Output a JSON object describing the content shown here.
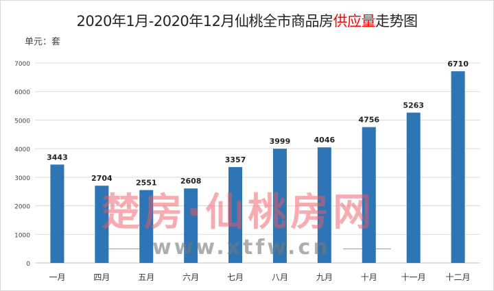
{
  "chart_data": {
    "type": "bar",
    "title_parts": [
      "2020年1月-2020年12月仙桃全市商品房",
      "供应量",
      "走势图"
    ],
    "unit_label": "单元：套",
    "categories": [
      "一月",
      "四月",
      "五月",
      "六月",
      "七月",
      "八月",
      "九月",
      "十月",
      "十一月",
      "十二月"
    ],
    "values": [
      3443,
      2704,
      2551,
      2608,
      3357,
      3999,
      4046,
      4756,
      5263,
      6710
    ],
    "ylim": [
      0,
      7000
    ],
    "yticks": [
      0,
      1000,
      2000,
      3000,
      4000,
      5000,
      6000,
      7000
    ],
    "grid": true,
    "bar_color": "#2e75b6",
    "highlight_color": "#ff0000",
    "xlabel": "",
    "ylabel": ""
  },
  "watermark": {
    "cn": "楚房·仙桃房网",
    "url": "www.xtfw.cn"
  }
}
